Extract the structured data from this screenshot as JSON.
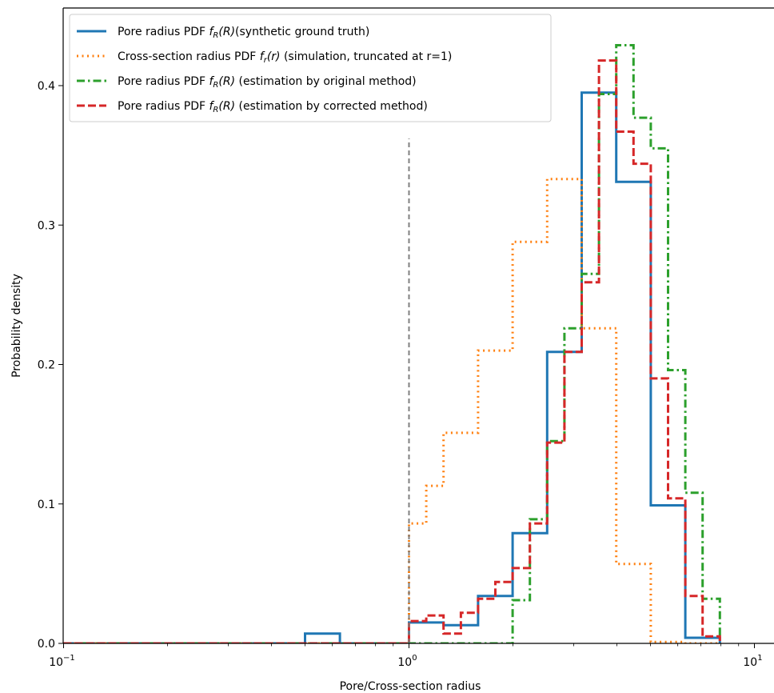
{
  "chart_data": {
    "type": "line",
    "xlabel": "Pore/Cross-section radius",
    "ylabel": "Probability density",
    "xscale": "log",
    "xlim": [
      0.1,
      10
    ],
    "ylim": [
      0,
      0.4
    ],
    "x_ticks": [
      {
        "value": 0.1,
        "base": "10",
        "exp": "−1"
      },
      {
        "value": 1,
        "base": "10",
        "exp": "0"
      },
      {
        "value": 10,
        "base": "10",
        "exp": "1"
      }
    ],
    "y_ticks": [
      0.0,
      0.1,
      0.2,
      0.3,
      0.4
    ],
    "y_tick_labels": [
      "0.0",
      "0.1",
      "0.2",
      "0.3",
      "0.4"
    ],
    "vline": {
      "x": 1,
      "ymax": 0.362,
      "color": "#808080",
      "style": "dashed"
    },
    "legend_position": "top-left",
    "series": [
      {
        "name": "Pore radius PDF f_R(R)(synthetic ground truth)",
        "legend": {
          "pre": "Pore radius PDF ",
          "fn": "f",
          "sub": "R",
          "arg": "(R)",
          "post": "(synthetic ground truth)"
        },
        "color": "#1f77b4",
        "style": "solid",
        "edges": [
          0.1,
          0.5,
          0.631,
          1.0,
          1.259,
          1.585,
          1.995,
          2.512,
          3.162,
          3.981,
          5.012,
          6.31,
          7.943
        ],
        "values": [
          0.0,
          0.007,
          0.0,
          0.015,
          0.013,
          0.034,
          0.079,
          0.209,
          0.395,
          0.331,
          0.099,
          0.004
        ]
      },
      {
        "name": "Cross-section radius PDF f_r(r) (simulation, truncated at r=1)",
        "legend": {
          "pre": "Cross-section radius PDF ",
          "fn": "f",
          "sub": "r",
          "arg": "(r)",
          "post": " (simulation, truncated at r=1)"
        },
        "color": "#ff7f0e",
        "style": "dotted",
        "edges": [
          0.1,
          1.0,
          1.122,
          1.259,
          1.585,
          1.995,
          2.512,
          3.162,
          3.981,
          5.012,
          6.31,
          7.943
        ],
        "values": [
          0.0,
          0.086,
          0.113,
          0.151,
          0.21,
          0.288,
          0.333,
          0.226,
          0.057,
          0.001,
          0.0
        ]
      },
      {
        "name": "Pore radius PDF f_R(R) (estimation by original method)",
        "legend": {
          "pre": "Pore radius PDF ",
          "fn": "f",
          "sub": "R",
          "arg": "(R)",
          "post": " (estimation by original method)"
        },
        "color": "#2ca02c",
        "style": "dashdot",
        "edges": [
          0.1,
          1.995,
          2.239,
          2.512,
          2.818,
          3.162,
          3.548,
          3.981,
          4.467,
          5.012,
          5.623,
          6.31,
          7.079,
          7.943
        ],
        "values": [
          0.0,
          0.031,
          0.089,
          0.145,
          0.226,
          0.265,
          0.394,
          0.429,
          0.377,
          0.355,
          0.196,
          0.108,
          0.032,
          0.005
        ]
      },
      {
        "name": "Pore radius PDF f_R(R) (estimation by corrected method)",
        "legend": {
          "pre": "Pore radius PDF ",
          "fn": "f",
          "sub": "R",
          "arg": "(R)",
          "post": " (estimation by corrected method)"
        },
        "color": "#d62728",
        "style": "dashed",
        "edges": [
          0.1,
          1.0,
          1.122,
          1.259,
          1.413,
          1.585,
          1.778,
          1.995,
          2.239,
          2.512,
          2.818,
          3.162,
          3.548,
          3.981,
          4.467,
          5.012,
          5.623,
          6.31,
          7.079,
          7.943
        ],
        "values": [
          0.0,
          0.016,
          0.02,
          0.007,
          0.022,
          0.032,
          0.044,
          0.054,
          0.086,
          0.144,
          0.209,
          0.259,
          0.418,
          0.367,
          0.344,
          0.19,
          0.104,
          0.034,
          0.005,
          0.0
        ]
      }
    ]
  }
}
